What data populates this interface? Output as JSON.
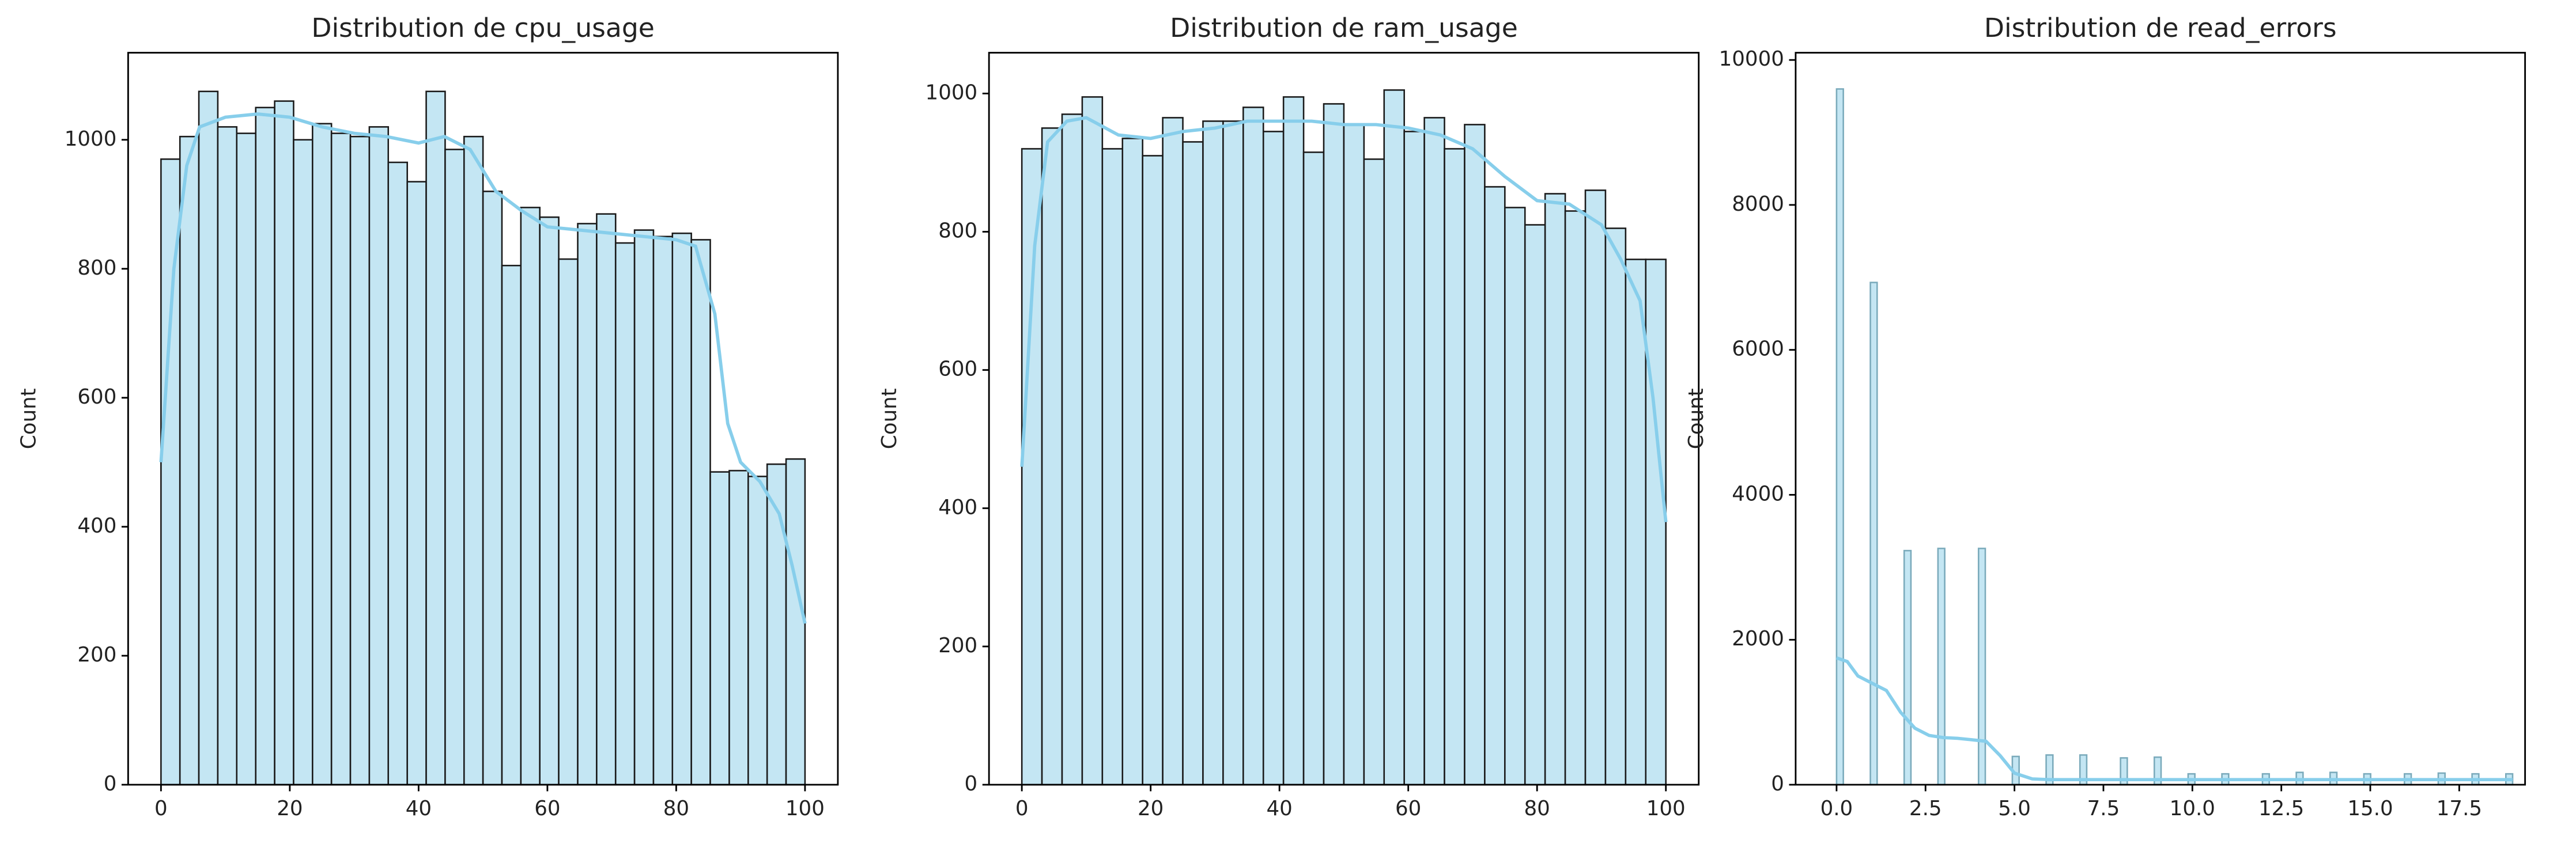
{
  "chart_data": [
    {
      "type": "histogram",
      "title": "Distribution de cpu_usage",
      "ylabel": "Count",
      "color": "#c4e6f3",
      "edgecolor": "#1a1a1a",
      "bins": [
        0,
        2.94,
        5.88,
        8.82,
        11.76,
        14.71,
        17.65,
        20.59,
        23.53,
        26.47,
        29.41,
        32.35,
        35.29,
        38.24,
        41.18,
        44.12,
        47.06,
        50,
        52.94,
        55.88,
        58.82,
        61.76,
        64.71,
        67.65,
        70.59,
        73.53,
        76.47,
        79.41,
        82.35,
        85.29,
        88.24,
        91.18,
        94.12,
        97.06,
        100
      ],
      "values": [
        970,
        1005,
        1075,
        1020,
        1010,
        1050,
        1060,
        1000,
        1025,
        1010,
        1005,
        1020,
        965,
        935,
        1075,
        985,
        1005,
        920,
        805,
        895,
        880,
        815,
        870,
        885,
        840,
        860,
        850,
        855,
        845,
        485,
        487,
        478,
        497,
        505
      ],
      "kde": {
        "color": "#87ceeb",
        "x": [
          0,
          2,
          4,
          6,
          10,
          15,
          20,
          25,
          30,
          35,
          40,
          44,
          48,
          52,
          56,
          60,
          65,
          70,
          75,
          80,
          83,
          86,
          88,
          90,
          93,
          96,
          98,
          100
        ],
        "values": [
          500,
          800,
          960,
          1020,
          1035,
          1040,
          1035,
          1020,
          1010,
          1005,
          995,
          1005,
          985,
          920,
          890,
          865,
          860,
          855,
          850,
          845,
          835,
          730,
          560,
          500,
          470,
          420,
          340,
          250
        ]
      },
      "xlim": [
        -5.1,
        105.1
      ],
      "ylim": [
        0,
        1135
      ],
      "xticks": [
        0,
        20,
        40,
        60,
        80,
        100
      ],
      "yticks": [
        0,
        200,
        400,
        600,
        800,
        1000
      ]
    },
    {
      "type": "histogram",
      "title": "Distribution de ram_usage",
      "ylabel": "Count",
      "color": "#c4e6f3",
      "edgecolor": "#1a1a1a",
      "bins": [
        0,
        3.125,
        6.25,
        9.375,
        12.5,
        15.625,
        18.75,
        21.875,
        25,
        28.125,
        31.25,
        34.375,
        37.5,
        40.625,
        43.75,
        46.875,
        50,
        53.125,
        56.25,
        59.375,
        62.5,
        65.625,
        68.75,
        71.875,
        75,
        78.125,
        81.25,
        84.375,
        87.5,
        90.625,
        93.75,
        96.875,
        100
      ],
      "values": [
        920,
        950,
        970,
        995,
        920,
        935,
        910,
        965,
        930,
        960,
        960,
        980,
        945,
        995,
        915,
        985,
        955,
        905,
        1005,
        945,
        965,
        920,
        955,
        865,
        835,
        810,
        855,
        830,
        860,
        805,
        760,
        760
      ],
      "kde": {
        "color": "#87ceeb",
        "x": [
          0,
          2,
          4,
          7,
          10,
          15,
          20,
          25,
          30,
          35,
          40,
          45,
          50,
          55,
          60,
          65,
          70,
          75,
          80,
          85,
          90,
          93,
          96,
          98,
          100
        ],
        "values": [
          460,
          780,
          930,
          960,
          965,
          940,
          935,
          945,
          950,
          960,
          960,
          960,
          955,
          955,
          950,
          940,
          920,
          880,
          845,
          840,
          810,
          760,
          700,
          560,
          380
        ]
      },
      "xlim": [
        -5.1,
        105.1
      ],
      "ylim": [
        0,
        1059
      ],
      "xticks": [
        0,
        20,
        40,
        60,
        80,
        100
      ],
      "yticks": [
        0,
        200,
        400,
        600,
        800,
        1000
      ]
    },
    {
      "type": "histogram",
      "title": "Distribution de read_errors",
      "ylabel": "Count",
      "color": "#c4e6f3",
      "edgecolor": "#7aaabb",
      "bins": [
        0,
        0.19,
        0.38,
        0.57,
        0.76,
        0.95,
        1.14,
        1.33,
        1.52,
        1.71,
        1.9,
        2.09,
        2.28,
        2.47,
        2.66,
        2.85,
        3.04,
        3.23,
        3.42,
        3.61,
        3.8,
        3.99,
        4.18,
        4.37,
        4.56,
        4.75,
        4.94,
        5.13,
        5.32,
        5.51,
        5.7,
        5.89,
        6.08,
        6.27,
        6.46,
        6.65,
        6.84,
        7.03,
        7.22,
        7.41,
        7.6,
        7.79,
        7.98,
        8.17,
        8.36,
        8.55,
        8.74,
        8.93,
        9.12,
        9.31,
        9.5,
        9.69,
        9.88,
        10.07,
        10.26,
        10.45,
        10.64,
        10.83,
        11.02,
        11.21,
        11.4,
        11.59,
        11.78,
        11.97,
        12.16,
        12.35,
        12.54,
        12.73,
        12.92,
        13.11,
        13.3,
        13.49,
        13.68,
        13.87,
        14.06,
        14.25,
        14.44,
        14.63,
        14.82,
        15.01,
        15.2,
        15.39,
        15.58,
        15.77,
        15.96,
        16.15,
        16.34,
        16.53,
        16.72,
        16.91,
        17.1,
        17.29,
        17.48,
        17.67,
        17.86,
        18.05,
        18.24,
        18.43,
        18.62,
        18.81,
        19
      ],
      "values": [
        9600,
        0,
        0,
        0,
        0,
        6930,
        0,
        0,
        0,
        0,
        3230,
        0,
        0,
        0,
        0,
        3260,
        0,
        0,
        0,
        0,
        0,
        3260,
        0,
        0,
        0,
        0,
        390,
        0,
        0,
        0,
        0,
        410,
        0,
        0,
        0,
        0,
        410,
        0,
        0,
        0,
        0,
        0,
        370,
        0,
        0,
        0,
        0,
        380,
        0,
        0,
        0,
        0,
        150,
        0,
        0,
        0,
        0,
        150,
        0,
        0,
        0,
        0,
        0,
        150,
        0,
        0,
        0,
        0,
        170,
        0,
        0,
        0,
        0,
        170,
        0,
        0,
        0,
        0,
        150,
        0,
        0,
        0,
        0,
        0,
        150,
        0,
        0,
        0,
        0,
        160,
        0,
        0,
        0,
        0,
        150,
        0,
        0,
        0,
        0,
        150
      ],
      "kde": {
        "color": "#87ceeb",
        "x": [
          0,
          0.3,
          0.6,
          1,
          1.4,
          1.8,
          2.2,
          2.6,
          3,
          3.4,
          3.8,
          4.2,
          4.6,
          5,
          5.5,
          6,
          8,
          10,
          12,
          14,
          16,
          18,
          19
        ],
        "values": [
          1750,
          1700,
          1500,
          1400,
          1300,
          1000,
          780,
          680,
          650,
          640,
          620,
          600,
          400,
          160,
          80,
          70,
          70,
          70,
          70,
          70,
          70,
          70,
          70
        ]
      },
      "xlim": [
        -1.15,
        19.35
      ],
      "ylim": [
        0,
        10100
      ],
      "xticks": [
        {
          "value": 0,
          "label": "0.0"
        },
        {
          "value": 2.5,
          "label": "2.5"
        },
        {
          "value": 5,
          "label": "5.0"
        },
        {
          "value": 7.5,
          "label": "7.5"
        },
        {
          "value": 10,
          "label": "10.0"
        },
        {
          "value": 12.5,
          "label": "12.5"
        },
        {
          "value": 15,
          "label": "15.0"
        },
        {
          "value": 17.5,
          "label": "17.5"
        }
      ],
      "yticks": [
        0,
        2000,
        4000,
        6000,
        8000,
        10000
      ]
    }
  ]
}
